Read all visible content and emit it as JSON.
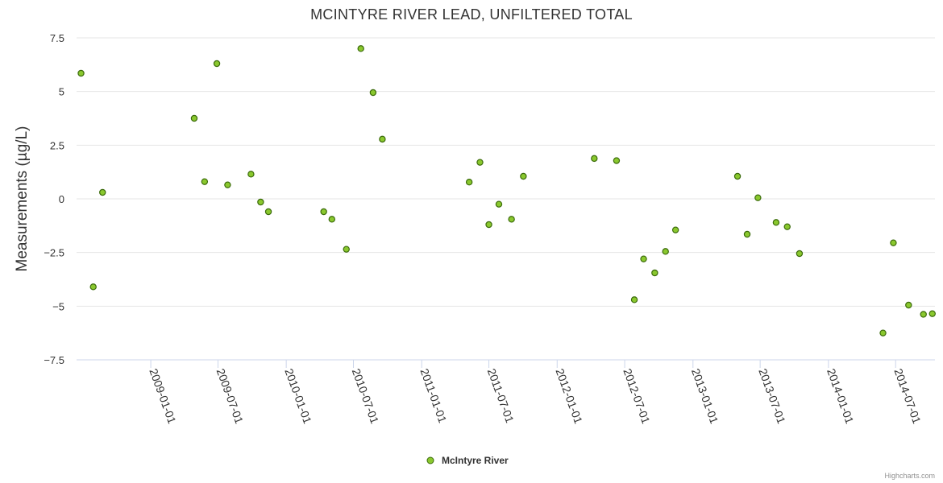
{
  "chart_data": {
    "type": "scatter",
    "title": "MCINTYRE RIVER LEAD, UNFILTERED TOTAL",
    "ylabel": "Measurements (µg/L)",
    "xlabel": "",
    "ylim": [
      -7.5,
      7.5
    ],
    "yticks": [
      7.5,
      5,
      2.5,
      0,
      -2.5,
      -5,
      -7.5
    ],
    "ytick_labels": [
      "7.5",
      "5",
      "2.5",
      "0",
      "−2.5",
      "−5",
      "−7.5"
    ],
    "xlim": [
      "2008-06-15",
      "2014-10-15"
    ],
    "xticks": [
      "2009-01-01",
      "2009-07-01",
      "2010-01-01",
      "2010-07-01",
      "2011-01-01",
      "2011-07-01",
      "2012-01-01",
      "2012-07-01",
      "2013-01-01",
      "2013-07-01",
      "2014-01-01",
      "2014-07-01"
    ],
    "grid": true,
    "legend_position": "bottom-center",
    "marker_color": "#8ac82e",
    "marker_stroke": "#3a6a0a",
    "series": [
      {
        "name": "McIntyre River",
        "points": [
          {
            "x": "2008-06-27",
            "y": 5.85
          },
          {
            "x": "2008-07-30",
            "y": -4.1
          },
          {
            "x": "2008-08-24",
            "y": 0.3
          },
          {
            "x": "2009-04-28",
            "y": 3.75
          },
          {
            "x": "2009-05-26",
            "y": 0.8
          },
          {
            "x": "2009-06-28",
            "y": 6.3
          },
          {
            "x": "2009-07-27",
            "y": 0.65
          },
          {
            "x": "2009-09-28",
            "y": 1.15
          },
          {
            "x": "2009-10-24",
            "y": -0.15
          },
          {
            "x": "2009-11-14",
            "y": -0.6
          },
          {
            "x": "2010-04-12",
            "y": -0.6
          },
          {
            "x": "2010-05-04",
            "y": -0.95
          },
          {
            "x": "2010-06-12",
            "y": -2.35
          },
          {
            "x": "2010-07-21",
            "y": 7.0
          },
          {
            "x": "2010-08-23",
            "y": 4.95
          },
          {
            "x": "2010-09-17",
            "y": 2.78
          },
          {
            "x": "2011-05-09",
            "y": 0.78
          },
          {
            "x": "2011-06-07",
            "y": 1.7
          },
          {
            "x": "2011-07-01",
            "y": -1.2
          },
          {
            "x": "2011-07-28",
            "y": -0.25
          },
          {
            "x": "2011-08-31",
            "y": -0.95
          },
          {
            "x": "2011-10-02",
            "y": 1.05
          },
          {
            "x": "2012-04-10",
            "y": 1.88
          },
          {
            "x": "2012-06-09",
            "y": 1.78
          },
          {
            "x": "2012-07-27",
            "y": -4.7
          },
          {
            "x": "2012-08-21",
            "y": -2.8
          },
          {
            "x": "2012-09-20",
            "y": -3.45
          },
          {
            "x": "2012-10-19",
            "y": -2.45
          },
          {
            "x": "2012-11-15",
            "y": -1.45
          },
          {
            "x": "2013-05-01",
            "y": 1.05
          },
          {
            "x": "2013-05-27",
            "y": -1.65
          },
          {
            "x": "2013-06-25",
            "y": 0.05
          },
          {
            "x": "2013-08-13",
            "y": -1.1
          },
          {
            "x": "2013-09-12",
            "y": -1.3
          },
          {
            "x": "2013-10-15",
            "y": -2.55
          },
          {
            "x": "2014-05-28",
            "y": -6.25
          },
          {
            "x": "2014-06-25",
            "y": -2.05
          },
          {
            "x": "2014-08-05",
            "y": -4.95
          },
          {
            "x": "2014-09-14",
            "y": -5.38
          },
          {
            "x": "2014-10-08",
            "y": -5.35
          }
        ]
      }
    ]
  },
  "credits": "Highcharts.com"
}
